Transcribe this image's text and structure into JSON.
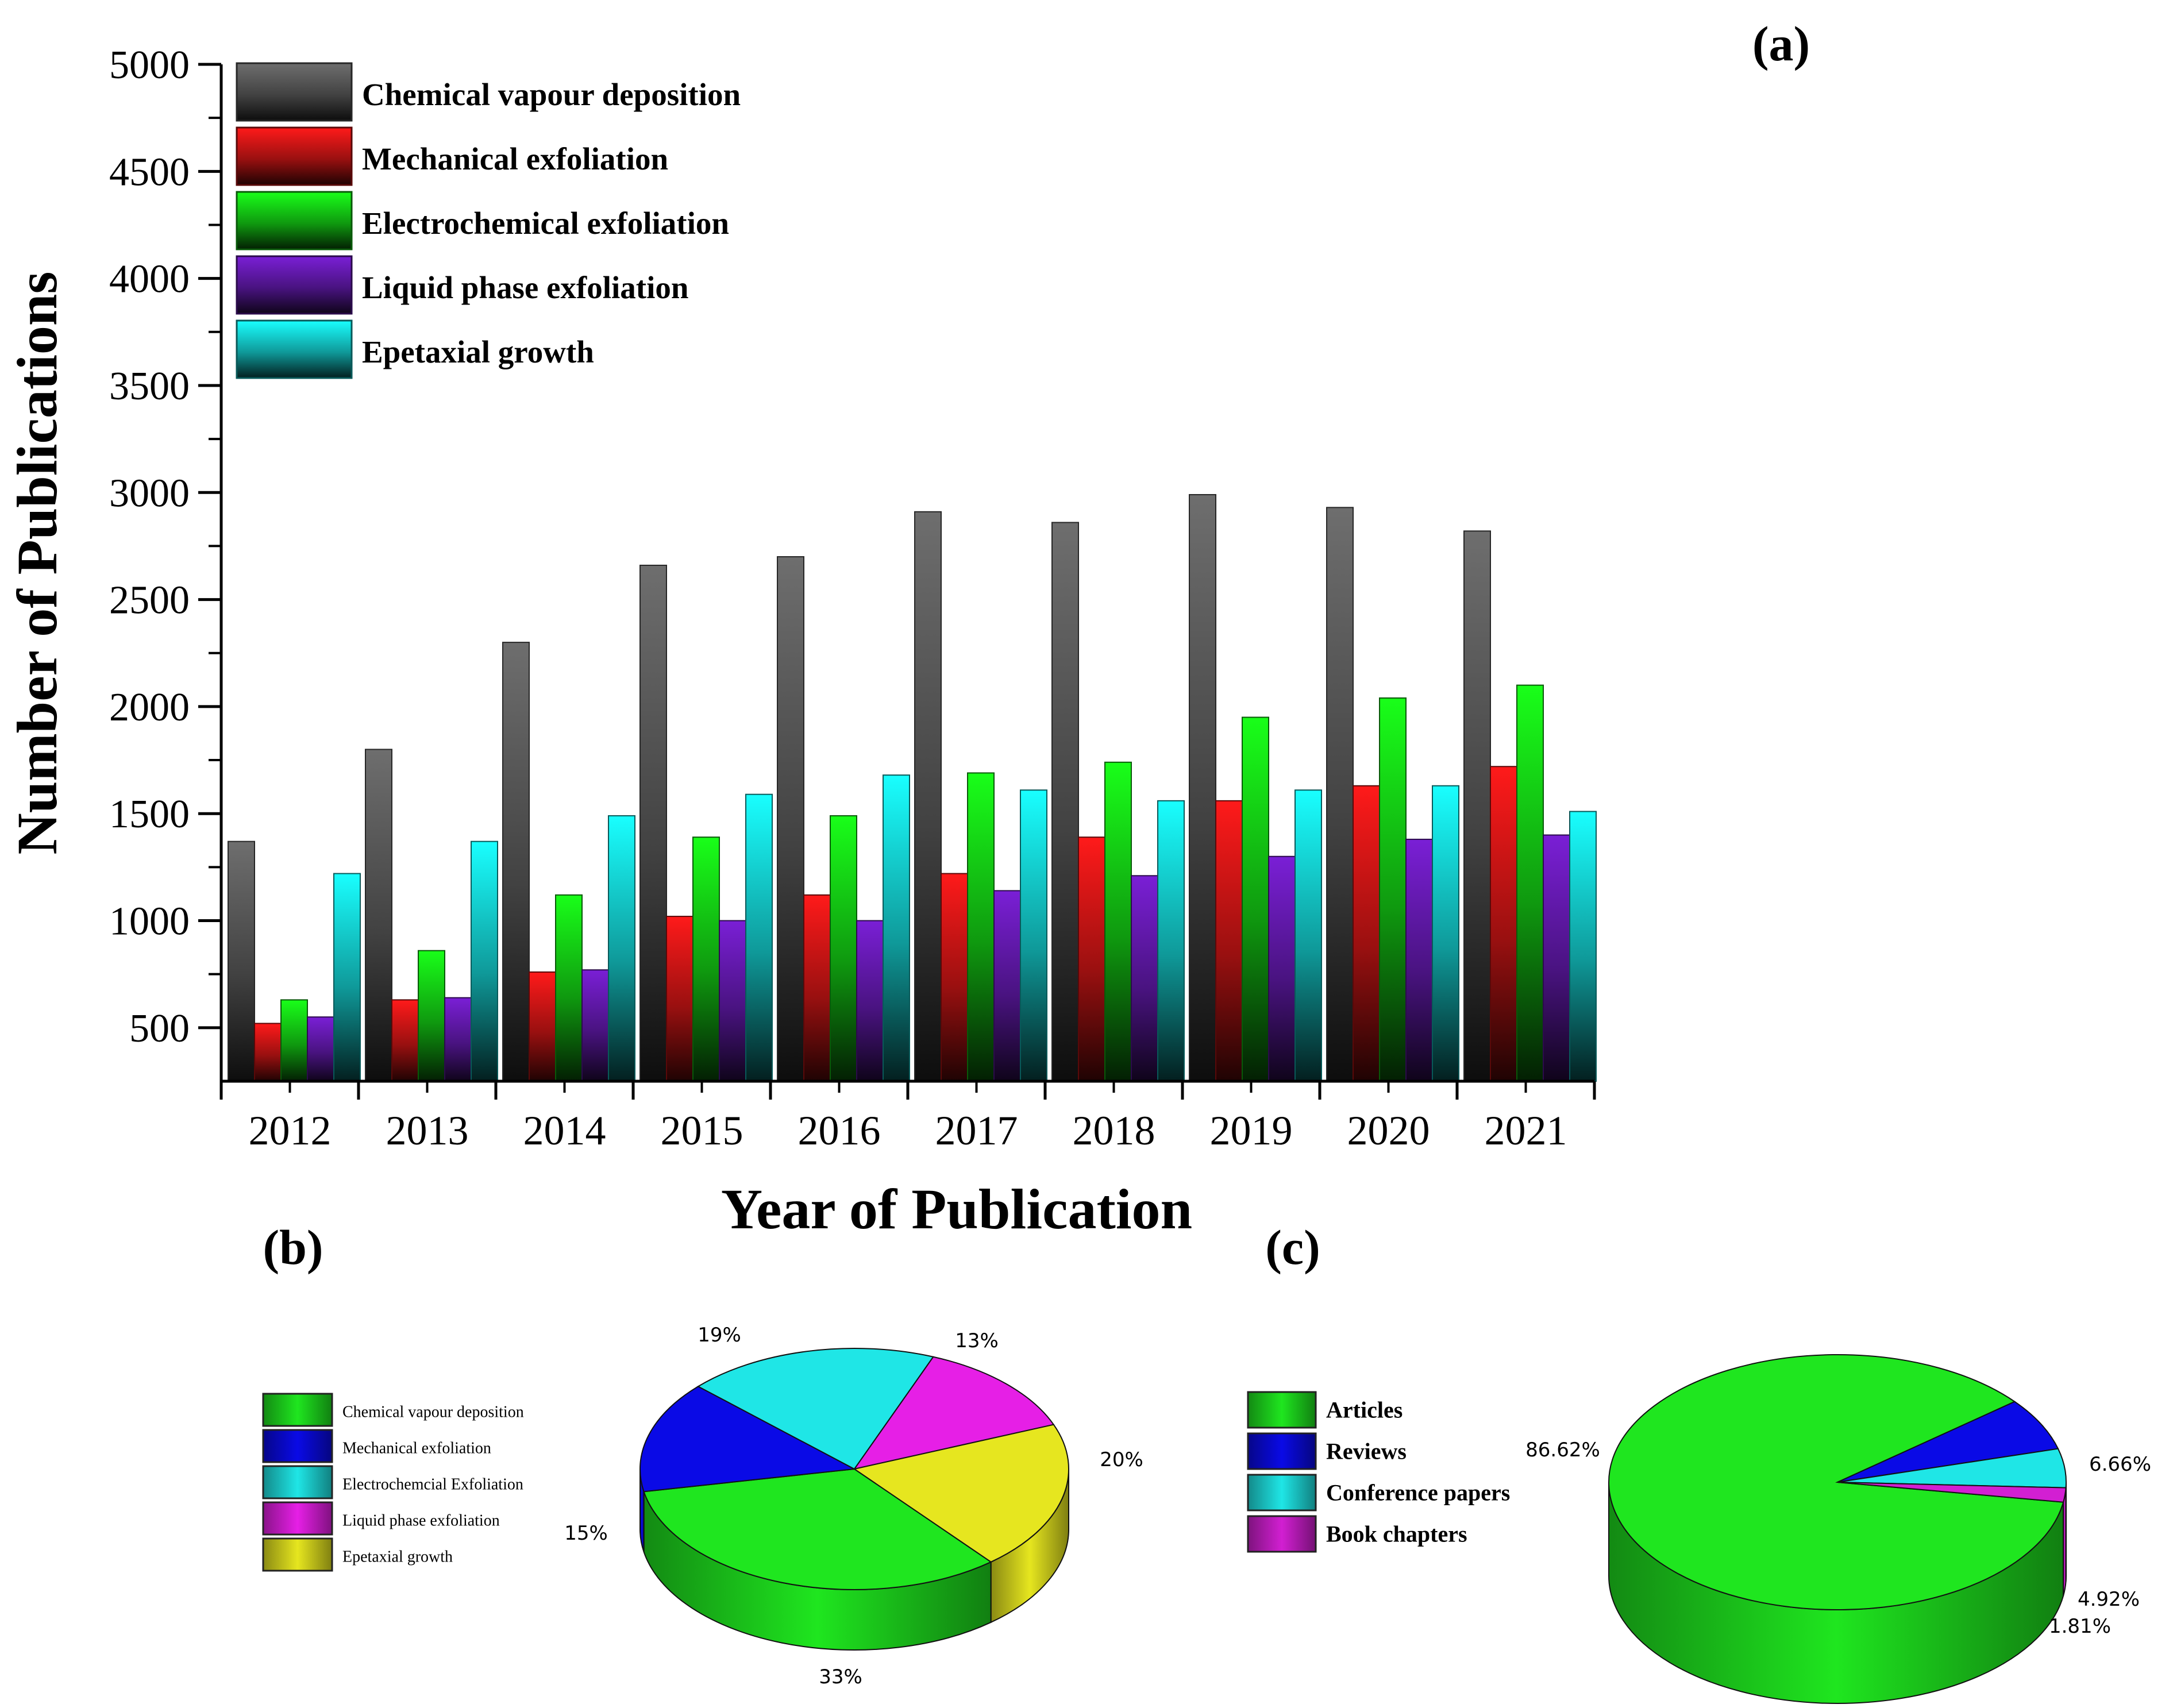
{
  "chart_data": [
    {
      "panel_label": "(a)",
      "type": "bar",
      "xlabel": "Year of Publication",
      "ylabel": "Number of Publications",
      "ylim": [
        250,
        5000
      ],
      "yticks": [
        500,
        1000,
        1500,
        2000,
        2500,
        3000,
        3500,
        4000,
        4500,
        5000
      ],
      "categories": [
        "2012",
        "2013",
        "2014",
        "2015",
        "2016",
        "2017",
        "2018",
        "2019",
        "2020",
        "2021"
      ],
      "legend_position": "top-left",
      "series": [
        {
          "name": "Chemical vapour deposition",
          "color": "#6e6e6e",
          "values": [
            1370,
            1800,
            2300,
            2660,
            2700,
            2910,
            2860,
            2990,
            2930,
            2820
          ]
        },
        {
          "name": "Mechanical exfoliation",
          "color": "#ff1a1a",
          "values": [
            520,
            630,
            760,
            1020,
            1120,
            1220,
            1390,
            1560,
            1630,
            1720
          ]
        },
        {
          "name": "Electrochemical exfoliation",
          "color": "#19ff19",
          "values": [
            630,
            860,
            1120,
            1390,
            1490,
            1690,
            1740,
            1950,
            2040,
            2100
          ]
        },
        {
          "name": "Liquid phase exfoliation",
          "color": "#7a1fd6",
          "values": [
            550,
            640,
            770,
            1000,
            1000,
            1140,
            1210,
            1300,
            1380,
            1400
          ]
        },
        {
          "name": "Epetaxial growth",
          "color": "#19ffff",
          "values": [
            1220,
            1370,
            1490,
            1590,
            1680,
            1610,
            1560,
            1610,
            1630,
            1510
          ]
        }
      ]
    },
    {
      "panel_label": "(b)",
      "type": "pie",
      "legend_position": "left",
      "slices": [
        {
          "legend": "Chemical vapour deposition",
          "label": "33%",
          "value": 33,
          "color": "#1fe61f"
        },
        {
          "legend": "Mechanical exfoliation",
          "label": "15%",
          "value": 15,
          "color": "#0a0ae6"
        },
        {
          "legend": "Electrochemcial Exfoliation",
          "label": "19%",
          "value": 19,
          "color": "#1fe6e6"
        },
        {
          "legend": "Liquid phase exfoliation",
          "label": "13%",
          "value": 13,
          "color": "#e61fe6"
        },
        {
          "legend": "Epetaxial growth",
          "label": "20%",
          "value": 20,
          "color": "#e6e61f"
        }
      ]
    },
    {
      "panel_label": "(c)",
      "type": "pie",
      "legend_position": "left",
      "slices": [
        {
          "legend": "Articles",
          "label": "86.62%",
          "value": 86.62,
          "color": "#1fe61f"
        },
        {
          "legend": "Reviews",
          "label": "6.66%",
          "value": 6.66,
          "color": "#0a0ae6"
        },
        {
          "legend": "Conference papers",
          "label": "4.92%",
          "value": 4.92,
          "color": "#1fe6e6"
        },
        {
          "legend": "Book chapters",
          "label": "1.81%",
          "value": 1.81,
          "color": "#d21fd2"
        }
      ]
    }
  ]
}
